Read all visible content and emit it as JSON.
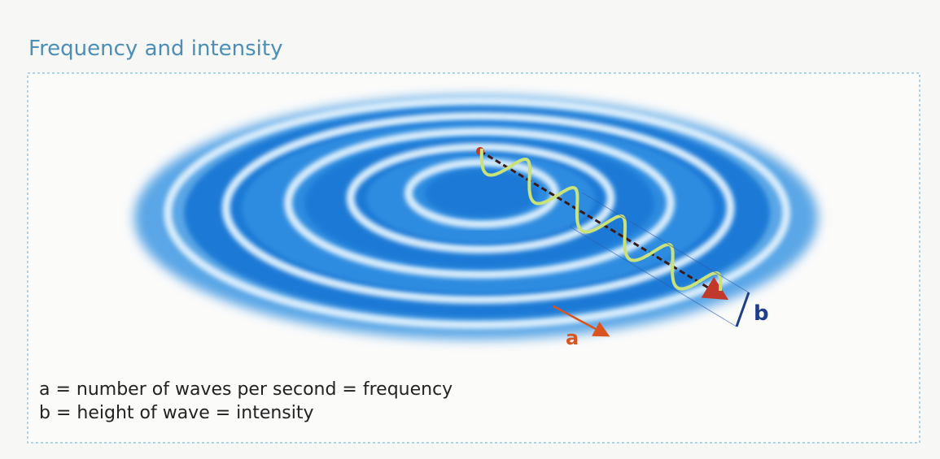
{
  "title": "Frequency and intensity",
  "labels": {
    "a": "a",
    "b": "b"
  },
  "legend": [
    "a = number of waves per second = frequency",
    "b = height of wave = intensity"
  ]
}
